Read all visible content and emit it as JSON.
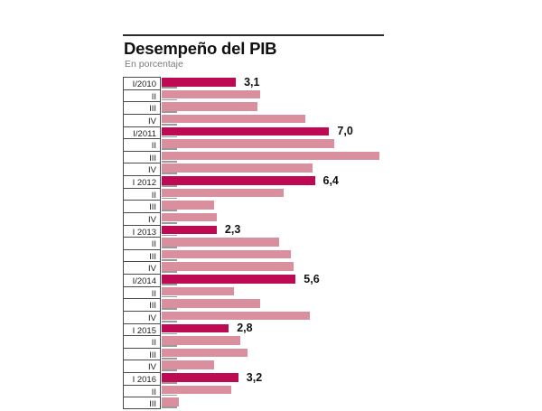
{
  "header": {
    "title": "Desempeño del PIB",
    "subtitle": "En porcentaje"
  },
  "colors": {
    "accent_dark": "#be0a52",
    "accent_light": "#d98f9e",
    "base_tick_gray": "#9a9a9a",
    "cell_border": "#4a4a4a",
    "top_rule": "#2b2b2b",
    "title_text": "#111111",
    "subtitle_text": "#7a7a7a",
    "value_text": "#111111"
  },
  "chart_data": {
    "type": "bar",
    "orientation": "horizontal",
    "title": "Desempeño del PIB",
    "subtitle": "En porcentaje",
    "unit": "percent",
    "xlim": [
      0,
      9.25
    ],
    "grid": false,
    "legend": false,
    "highlight_rule": "first quarter of each year drawn in dark crimson with bold data label; other quarters in light pink without label",
    "rows": [
      {
        "label": "I/2010",
        "value": 3.1,
        "display_value": "3,1",
        "emphasis": true
      },
      {
        "label": "II",
        "value": 4.1,
        "emphasis": false
      },
      {
        "label": "III",
        "value": 4.0,
        "emphasis": false
      },
      {
        "label": "IV",
        "value": 6.0,
        "emphasis": false
      },
      {
        "label": "I/2011",
        "value": 7.0,
        "display_value": "7,0",
        "emphasis": true
      },
      {
        "label": "II",
        "value": 7.2,
        "emphasis": false
      },
      {
        "label": "III",
        "value": 9.1,
        "emphasis": false
      },
      {
        "label": "IV",
        "value": 6.3,
        "emphasis": false
      },
      {
        "label": "I 2012",
        "value": 6.4,
        "display_value": "6,4",
        "emphasis": true
      },
      {
        "label": "II",
        "value": 5.1,
        "emphasis": false
      },
      {
        "label": "III",
        "value": 2.2,
        "emphasis": false
      },
      {
        "label": "IV",
        "value": 2.3,
        "emphasis": false
      },
      {
        "label": "I 2013",
        "value": 2.3,
        "display_value": "2,3",
        "emphasis": true
      },
      {
        "label": "II",
        "value": 4.9,
        "emphasis": false
      },
      {
        "label": "III",
        "value": 5.4,
        "emphasis": false
      },
      {
        "label": "IV",
        "value": 5.5,
        "emphasis": false
      },
      {
        "label": "I/2014",
        "value": 5.6,
        "display_value": "5,6",
        "emphasis": true
      },
      {
        "label": "II",
        "value": 3.0,
        "emphasis": false
      },
      {
        "label": "III",
        "value": 4.1,
        "emphasis": false
      },
      {
        "label": "IV",
        "value": 6.2,
        "emphasis": false
      },
      {
        "label": "I 2015",
        "value": 2.8,
        "display_value": "2,8",
        "emphasis": true
      },
      {
        "label": "II",
        "value": 3.3,
        "emphasis": false
      },
      {
        "label": "III",
        "value": 3.6,
        "emphasis": false
      },
      {
        "label": "IV",
        "value": 2.2,
        "emphasis": false
      },
      {
        "label": "I 2016",
        "value": 3.2,
        "display_value": "3,2",
        "emphasis": true
      },
      {
        "label": "II",
        "value": 2.9,
        "emphasis": false
      },
      {
        "label": "III",
        "value": 0.7,
        "emphasis": false
      }
    ]
  }
}
